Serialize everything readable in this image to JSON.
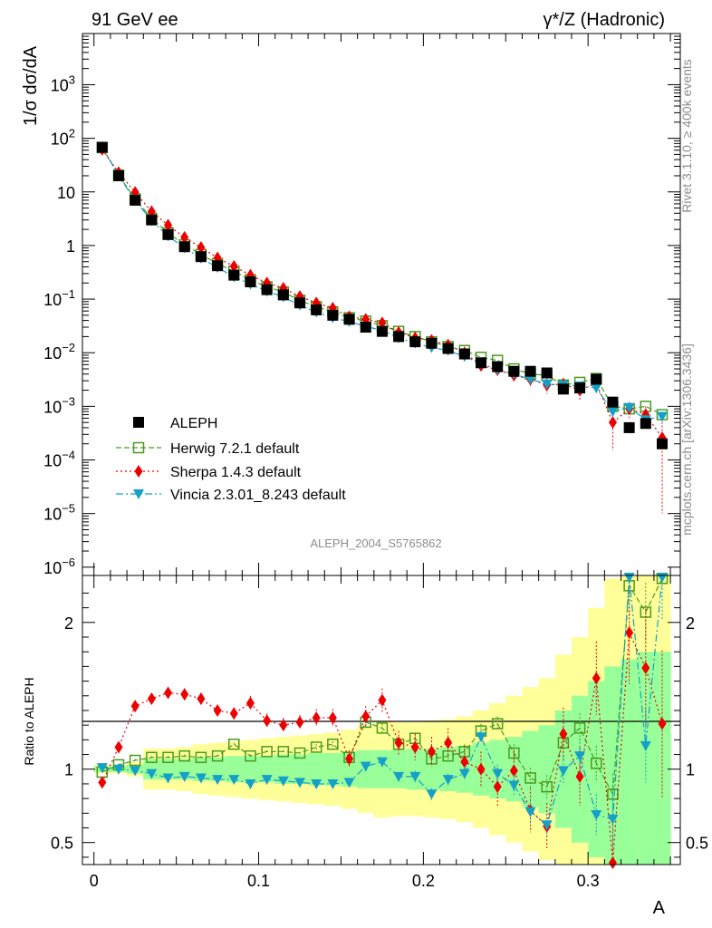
{
  "header": {
    "left": "91 GeV ee",
    "right": "γ*/Z (Hadronic)"
  },
  "side_texts": {
    "rivet": "Rivet 3.1.10, ≥ 400k events",
    "mcplots": "mcplots.cern.ch [arXiv:1306.3436]"
  },
  "analysis_id": "ALEPH_2004_S5765862",
  "chart_data": [
    {
      "type": "scatter",
      "ylabel": "1/σ  dσ/dA",
      "xlabel": "",
      "yscale": "log",
      "xlim": [
        -0.007,
        0.356
      ],
      "ylim": [
        7e-07,
        9000.0
      ],
      "yticks": [
        {
          "v": 1e-06,
          "t": "10",
          "e": "−6"
        },
        {
          "v": 1e-05,
          "t": "10",
          "e": "−5"
        },
        {
          "v": 0.0001,
          "t": "10",
          "e": "−4"
        },
        {
          "v": 0.001,
          "t": "10",
          "e": "−3"
        },
        {
          "v": 0.01,
          "t": "10",
          "e": "−2"
        },
        {
          "v": 0.1,
          "t": "10",
          "e": "−1"
        },
        {
          "v": 1,
          "t": "1",
          "e": ""
        },
        {
          "v": 10,
          "t": "10",
          "e": ""
        },
        {
          "v": 100,
          "t": "10",
          "e": "2"
        },
        {
          "v": 1000,
          "t": "10",
          "e": "3"
        }
      ],
      "legend_position": "lower-left",
      "x": [
        0.005,
        0.015,
        0.025,
        0.035,
        0.045,
        0.055,
        0.065,
        0.075,
        0.085,
        0.095,
        0.105,
        0.115,
        0.125,
        0.135,
        0.145,
        0.155,
        0.165,
        0.175,
        0.185,
        0.195,
        0.205,
        0.215,
        0.225,
        0.235,
        0.245,
        0.255,
        0.265,
        0.275,
        0.285,
        0.295,
        0.305,
        0.315,
        0.325,
        0.335,
        0.345
      ],
      "series": [
        {
          "name": "ALEPH",
          "color": "#000000",
          "marker": "square-filled",
          "values": [
            68,
            20,
            7.0,
            3.0,
            1.6,
            0.95,
            0.62,
            0.42,
            0.28,
            0.21,
            0.15,
            0.12,
            0.085,
            0.063,
            0.05,
            0.042,
            0.03,
            0.025,
            0.02,
            0.016,
            0.015,
            0.012,
            0.0095,
            0.0065,
            0.0055,
            0.0045,
            0.0045,
            0.0042,
            0.0021,
            0.0022,
            0.0032,
            0.0012,
            0.0004,
            0.00048,
            0.0002
          ]
        },
        {
          "name": "Herwig 7.2.1 default",
          "color": "#4b9a1e",
          "marker": "square-open",
          "line": "dashed",
          "values": [
            67,
            20.5,
            7.4,
            3.2,
            1.72,
            1.03,
            0.68,
            0.46,
            0.33,
            0.23,
            0.17,
            0.135,
            0.095,
            0.072,
            0.058,
            0.045,
            0.039,
            0.032,
            0.025,
            0.02,
            0.016,
            0.013,
            0.011,
            0.0082,
            0.0072,
            0.005,
            0.004,
            0.0038,
            0.0025,
            0.0028,
            0.0033,
            0.001,
            0.0009,
            0.001,
            0.0007
          ]
        },
        {
          "name": "Sherpa 1.4.3 default",
          "color": "#ee0000",
          "marker": "diamond-filled",
          "line": "dotted",
          "values": [
            62,
            23,
            9.8,
            4.3,
            2.4,
            1.42,
            0.92,
            0.59,
            0.41,
            0.28,
            0.2,
            0.16,
            0.112,
            0.085,
            0.068,
            0.047,
            0.042,
            0.036,
            0.024,
            0.019,
            0.017,
            0.014,
            0.01,
            0.0058,
            0.0048,
            0.0038,
            0.0032,
            0.0025,
            0.0026,
            0.002,
            0.0027,
            0.0005,
            0.0009,
            0.0007,
            0.00026
          ],
          "errors": [
            2,
            0.5,
            0.2,
            0.1,
            0.05,
            0.03,
            0.02,
            0.015,
            0.01,
            0.008,
            0.006,
            0.005,
            0.004,
            0.003,
            0.003,
            0.002,
            0.002,
            0.002,
            0.0015,
            0.0012,
            0.001,
            0.001,
            0.0008,
            0.0008,
            0.0008,
            0.0008,
            0.0008,
            0.0008,
            0.0008,
            0.0007,
            0.0008,
            0.00035,
            0.0003,
            0.0003,
            0.00025
          ]
        },
        {
          "name": "Vincia 2.3.01_8.243 default",
          "color": "#15a0c8",
          "marker": "triangle-down-filled",
          "line": "dashdot",
          "values": [
            69,
            20,
            6.9,
            2.9,
            1.5,
            0.9,
            0.58,
            0.39,
            0.26,
            0.19,
            0.14,
            0.11,
            0.077,
            0.057,
            0.045,
            0.038,
            0.031,
            0.026,
            0.019,
            0.015,
            0.0125,
            0.011,
            0.0085,
            0.0063,
            0.0048,
            0.004,
            0.0032,
            0.0026,
            0.0025,
            0.0024,
            0.0022,
            0.0008,
            0.00095,
            0.00056,
            0.00065
          ]
        }
      ]
    },
    {
      "type": "line",
      "ylabel": "Ratio to ALEPH",
      "xlabel": "A",
      "ylim": [
        0.35,
        2.32
      ],
      "xticks": [
        {
          "v": 0,
          "t": "0"
        },
        {
          "v": 0.1,
          "t": "0.1"
        },
        {
          "v": 0.2,
          "t": "0.2"
        },
        {
          "v": 0.3,
          "t": "0.3"
        }
      ],
      "yticks": [
        {
          "v": 0.5,
          "t": "0.5"
        },
        {
          "v": 1,
          "t": "1"
        },
        {
          "v": 2,
          "t": "2"
        }
      ],
      "reference_line": 1,
      "x": [
        0.005,
        0.015,
        0.025,
        0.035,
        0.045,
        0.055,
        0.065,
        0.075,
        0.085,
        0.095,
        0.105,
        0.115,
        0.125,
        0.135,
        0.145,
        0.155,
        0.165,
        0.175,
        0.185,
        0.195,
        0.205,
        0.215,
        0.225,
        0.235,
        0.245,
        0.255,
        0.265,
        0.275,
        0.285,
        0.295,
        0.305,
        0.315,
        0.325,
        0.335,
        0.345
      ],
      "band_stat": [
        0.02,
        0.02,
        0.03,
        0.07,
        0.07,
        0.07,
        0.08,
        0.08,
        0.09,
        0.09,
        0.09,
        0.1,
        0.1,
        0.11,
        0.11,
        0.12,
        0.13,
        0.13,
        0.13,
        0.14,
        0.14,
        0.15,
        0.16,
        0.18,
        0.2,
        0.22,
        0.26,
        0.3,
        0.4,
        0.5,
        0.6,
        0.7,
        0.75,
        0.8,
        0.8
      ],
      "band_total": [
        0.03,
        0.03,
        0.05,
        0.14,
        0.14,
        0.15,
        0.17,
        0.18,
        0.19,
        0.2,
        0.21,
        0.22,
        0.23,
        0.24,
        0.25,
        0.27,
        0.3,
        0.33,
        0.32,
        0.32,
        0.33,
        0.34,
        0.36,
        0.4,
        0.45,
        0.5,
        0.56,
        0.62,
        0.78,
        0.9,
        1.1,
        1.3,
        1.4,
        1.5,
        1.5
      ],
      "series": [
        {
          "name": "Herwig 7.2.1 default",
          "color": "#4b9a1e",
          "marker": "square-open",
          "line": "dashed",
          "values": [
            0.98,
            1.03,
            1.06,
            1.08,
            1.08,
            1.09,
            1.08,
            1.09,
            1.17,
            1.09,
            1.12,
            1.12,
            1.11,
            1.15,
            1.17,
            1.08,
            1.32,
            1.28,
            1.17,
            1.21,
            1.07,
            1.09,
            1.12,
            1.26,
            1.31,
            1.11,
            0.94,
            0.88,
            1.18,
            1.28,
            1.04,
            0.83,
            2.25,
            2.07,
            2.3
          ],
          "errors": [
            0.01,
            0.01,
            0.01,
            0.01,
            0.01,
            0.01,
            0.01,
            0.01,
            0.01,
            0.01,
            0.01,
            0.01,
            0.01,
            0.02,
            0.02,
            0.02,
            0.03,
            0.03,
            0.03,
            0.04,
            0.04,
            0.04,
            0.05,
            0.05,
            0.05,
            0.06,
            0.07,
            0.08,
            0.09,
            0.1,
            0.12,
            0.14,
            0.2,
            0.2,
            0.2
          ]
        },
        {
          "name": "Sherpa 1.4.3 default",
          "color": "#ee0000",
          "marker": "diamond-filled",
          "line": "dotted",
          "values": [
            0.91,
            1.15,
            1.43,
            1.48,
            1.52,
            1.51,
            1.48,
            1.4,
            1.38,
            1.45,
            1.33,
            1.3,
            1.32,
            1.35,
            1.35,
            1.07,
            1.36,
            1.47,
            1.18,
            1.15,
            1.12,
            1.18,
            1.05,
            1.0,
            0.88,
            0.99,
            0.72,
            0.61,
            1.24,
            0.95,
            1.62,
            0.35,
            1.93,
            1.69,
            1.31
          ],
          "errors": [
            0.02,
            0.03,
            0.03,
            0.03,
            0.04,
            0.04,
            0.04,
            0.04,
            0.04,
            0.05,
            0.05,
            0.05,
            0.05,
            0.06,
            0.06,
            0.06,
            0.07,
            0.08,
            0.08,
            0.09,
            0.1,
            0.1,
            0.11,
            0.12,
            0.13,
            0.14,
            0.15,
            0.16,
            0.18,
            0.2,
            0.25,
            0.3,
            0.35,
            0.4,
            0.5
          ]
        },
        {
          "name": "Vincia 2.3.01_8.243 default",
          "color": "#15a0c8",
          "marker": "triangle-down-filled",
          "line": "dashdot",
          "values": [
            1.01,
            1.0,
            0.99,
            0.97,
            0.94,
            0.95,
            0.94,
            0.93,
            0.93,
            0.9,
            0.93,
            0.92,
            0.91,
            0.9,
            0.9,
            0.91,
            1.02,
            1.05,
            0.95,
            0.95,
            0.83,
            0.93,
            0.97,
            1.22,
            0.97,
            0.89,
            0.71,
            0.62,
            0.99,
            1.09,
            0.69,
            0.66,
            2.35,
            1.16,
            2.32
          ],
          "errors": [
            0.01,
            0.01,
            0.01,
            0.01,
            0.01,
            0.01,
            0.01,
            0.01,
            0.01,
            0.01,
            0.01,
            0.01,
            0.02,
            0.02,
            0.02,
            0.02,
            0.03,
            0.03,
            0.03,
            0.04,
            0.04,
            0.04,
            0.05,
            0.05,
            0.06,
            0.07,
            0.08,
            0.08,
            0.1,
            0.12,
            0.14,
            0.18,
            0.25,
            0.25,
            0.3
          ]
        }
      ]
    }
  ]
}
